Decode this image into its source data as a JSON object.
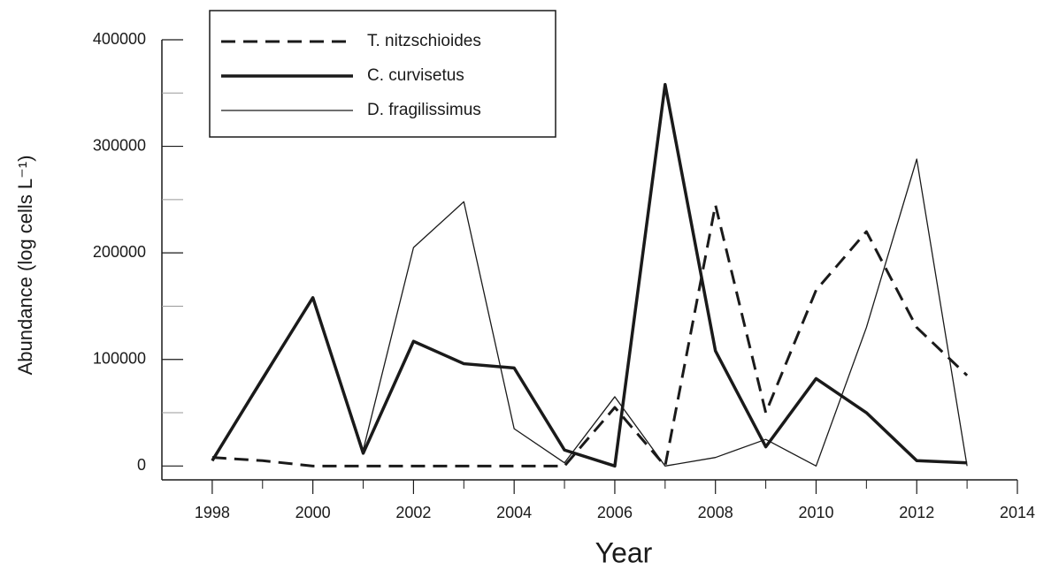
{
  "chart_data": {
    "type": "line",
    "x_label": "Year",
    "y_label": "Abundance (log cells L⁻¹)",
    "x": [
      1998,
      1999,
      2000,
      2001,
      2002,
      2003,
      2004,
      2005,
      2006,
      2007,
      2008,
      2009,
      2010,
      2011,
      2012,
      2013
    ],
    "series": [
      {
        "name": "T. nitzschioides",
        "color": "#1a1a1a",
        "style": "dashed",
        "values": [
          8000,
          5000,
          0,
          0,
          0,
          0,
          0,
          0,
          55000,
          0,
          245000,
          50000,
          165000,
          220000,
          130000,
          85000
        ]
      },
      {
        "name": "C. curvisetus",
        "color": "#1a1a1a",
        "style": "thick",
        "values": [
          5000,
          82000,
          158000,
          12000,
          117000,
          96000,
          92000,
          15000,
          0,
          358000,
          108000,
          18000,
          82000,
          50000,
          5000,
          3000
        ]
      },
      {
        "name": "D. fragilissimus",
        "color": "#1a1a1a",
        "style": "thin",
        "values": [
          5000,
          80000,
          158000,
          15000,
          205000,
          248000,
          35000,
          3000,
          65000,
          0,
          8000,
          25000,
          0,
          130000,
          288000,
          0
        ]
      }
    ],
    "xlim": [
      1997,
      2014
    ],
    "xticks": [
      1998,
      2000,
      2002,
      2004,
      2006,
      2008,
      2010,
      2012,
      2014
    ],
    "ylim": [
      -13000,
      400000
    ],
    "yticks": [
      0,
      100000,
      200000,
      300000,
      400000
    ],
    "legend": "upper left"
  }
}
